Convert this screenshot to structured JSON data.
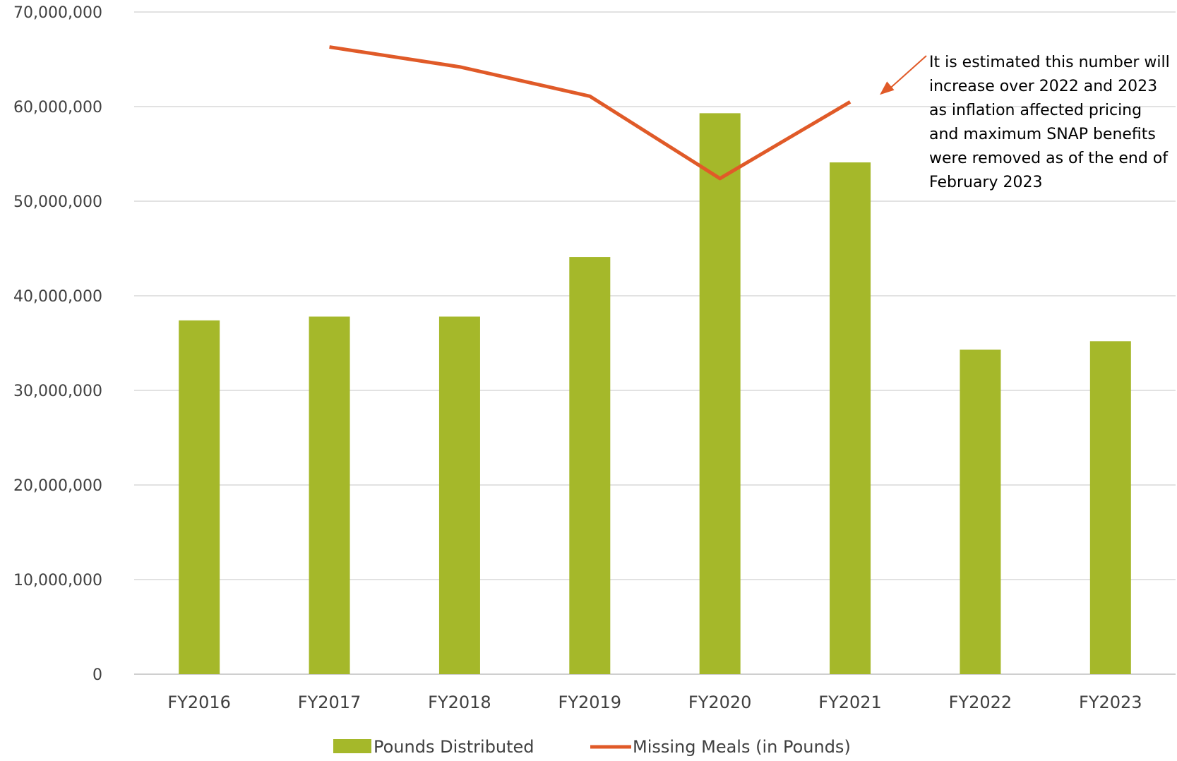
{
  "chart_data": {
    "type": "bar",
    "categories": [
      "FY2016",
      "FY2017",
      "FY2018",
      "FY2019",
      "FY2020",
      "FY2021",
      "FY2022",
      "FY2023"
    ],
    "series": [
      {
        "name": "Pounds Distributed",
        "type": "bar",
        "color": "#A5B82A",
        "values": [
          37400000,
          37800000,
          37800000,
          44100000,
          59300000,
          54100000,
          34300000,
          35200000
        ]
      },
      {
        "name": "Missing Meals (in Pounds)",
        "type": "line",
        "color": "#E05A28",
        "values": [
          null,
          66300000,
          64200000,
          61100000,
          52400000,
          60500000,
          null,
          null
        ]
      }
    ],
    "ylim": [
      0,
      70000000
    ],
    "yticks": [
      0,
      10000000,
      20000000,
      30000000,
      40000000,
      50000000,
      60000000,
      70000000
    ],
    "ytick_labels": [
      "0",
      "10,000,000",
      "20,000,000",
      "30,000,000",
      "40,000,000",
      "50,000,000",
      "60,000,000",
      "70,000,000"
    ],
    "grid": true,
    "legend_position": "bottom",
    "annotation": {
      "text": "It is estimated this number will increase over 2022 and 2023 as inflation affected pricing and maximum SNAP benefits were removed as of the end of February 2023",
      "points_to_category": "FY2021",
      "color": "#E05A28"
    },
    "gridline_color": "#D9D9D9",
    "axis_color": "#BFBFBF"
  }
}
